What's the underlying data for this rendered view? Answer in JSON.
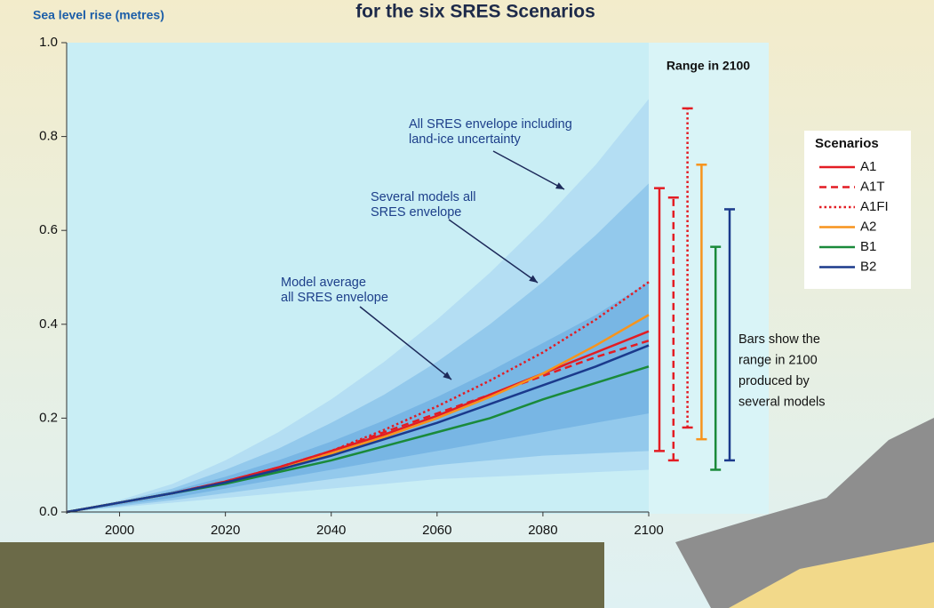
{
  "chart_data": {
    "type": "line",
    "title": "for the six SRES Scenarios",
    "y_label": "Sea level rise (metres)",
    "x": [
      1990,
      2000,
      2010,
      2020,
      2030,
      2040,
      2050,
      2060,
      2070,
      2080,
      2090,
      2100
    ],
    "xlim": [
      1990,
      2100
    ],
    "xticks": [
      2000,
      2020,
      2040,
      2060,
      2080,
      2100
    ],
    "ylim": [
      0,
      1
    ],
    "yticks": [
      {
        "value": 0,
        "label": "0.0"
      },
      0.2,
      0.4,
      0.6,
      0.8,
      {
        "value": 1,
        "label": "1.0"
      }
    ],
    "bands": [
      {
        "color": "#b4def3",
        "upper": [
          0,
          0.025,
          0.06,
          0.11,
          0.17,
          0.24,
          0.32,
          0.41,
          0.51,
          0.62,
          0.74,
          0.88
        ],
        "lower": [
          0,
          0.01,
          0.02,
          0.03,
          0.04,
          0.05,
          0.06,
          0.07,
          0.075,
          0.08,
          0.085,
          0.09
        ]
      },
      {
        "color": "#93c9ec",
        "upper": [
          0,
          0.022,
          0.05,
          0.09,
          0.135,
          0.19,
          0.25,
          0.32,
          0.4,
          0.49,
          0.59,
          0.7
        ],
        "lower": [
          0,
          0.012,
          0.025,
          0.04,
          0.055,
          0.07,
          0.085,
          0.1,
          0.11,
          0.12,
          0.125,
          0.13
        ]
      },
      {
        "color": "#78b6e4",
        "upper": [
          0,
          0.02,
          0.045,
          0.075,
          0.11,
          0.15,
          0.195,
          0.245,
          0.3,
          0.36,
          0.42,
          0.49
        ],
        "lower": [
          0,
          0.015,
          0.03,
          0.05,
          0.07,
          0.09,
          0.11,
          0.13,
          0.15,
          0.17,
          0.19,
          0.21
        ]
      }
    ],
    "series": [
      {
        "name": "A1",
        "color": "#e31c23",
        "dash": "solid",
        "values": [
          0,
          0.02,
          0.04,
          0.065,
          0.095,
          0.13,
          0.165,
          0.205,
          0.25,
          0.295,
          0.34,
          0.385
        ],
        "range": [
          0.13,
          0.69
        ]
      },
      {
        "name": "A1T",
        "color": "#e31c23",
        "dash": "dashed",
        "values": [
          0,
          0.02,
          0.04,
          0.065,
          0.095,
          0.13,
          0.17,
          0.21,
          0.25,
          0.29,
          0.33,
          0.365
        ],
        "range": [
          0.11,
          0.67
        ]
      },
      {
        "name": "A1FI",
        "color": "#e31c23",
        "dash": "dotted",
        "values": [
          0,
          0.02,
          0.04,
          0.065,
          0.095,
          0.13,
          0.175,
          0.225,
          0.28,
          0.34,
          0.41,
          0.49
        ],
        "range": [
          0.18,
          0.86
        ]
      },
      {
        "name": "A2",
        "color": "#f7941d",
        "dash": "solid",
        "values": [
          0,
          0.02,
          0.04,
          0.062,
          0.09,
          0.125,
          0.16,
          0.2,
          0.245,
          0.295,
          0.355,
          0.42
        ],
        "range": [
          0.155,
          0.74
        ]
      },
      {
        "name": "B1",
        "color": "#1a8a3a",
        "dash": "solid",
        "values": [
          0,
          0.02,
          0.04,
          0.06,
          0.085,
          0.11,
          0.14,
          0.17,
          0.2,
          0.24,
          0.275,
          0.31
        ],
        "range": [
          0.09,
          0.565
        ]
      },
      {
        "name": "B2",
        "color": "#1b3a8c",
        "dash": "solid",
        "values": [
          0,
          0.02,
          0.04,
          0.063,
          0.09,
          0.12,
          0.155,
          0.19,
          0.23,
          0.27,
          0.31,
          0.355
        ],
        "range": [
          0.11,
          0.645
        ]
      }
    ],
    "range_title": "Range in 2100",
    "legend_title": "Scenarios",
    "annotations": [
      {
        "lines": [
          "All SRES envelope including",
          "land-ice uncertainty"
        ]
      },
      {
        "lines": [
          "Several models all",
          "SRES envelope"
        ]
      },
      {
        "lines": [
          "Model average",
          "all SRES envelope"
        ]
      },
      {
        "lines": [
          "Bars show  the",
          "range in 2100",
          "produced by",
          "several models"
        ]
      }
    ]
  }
}
